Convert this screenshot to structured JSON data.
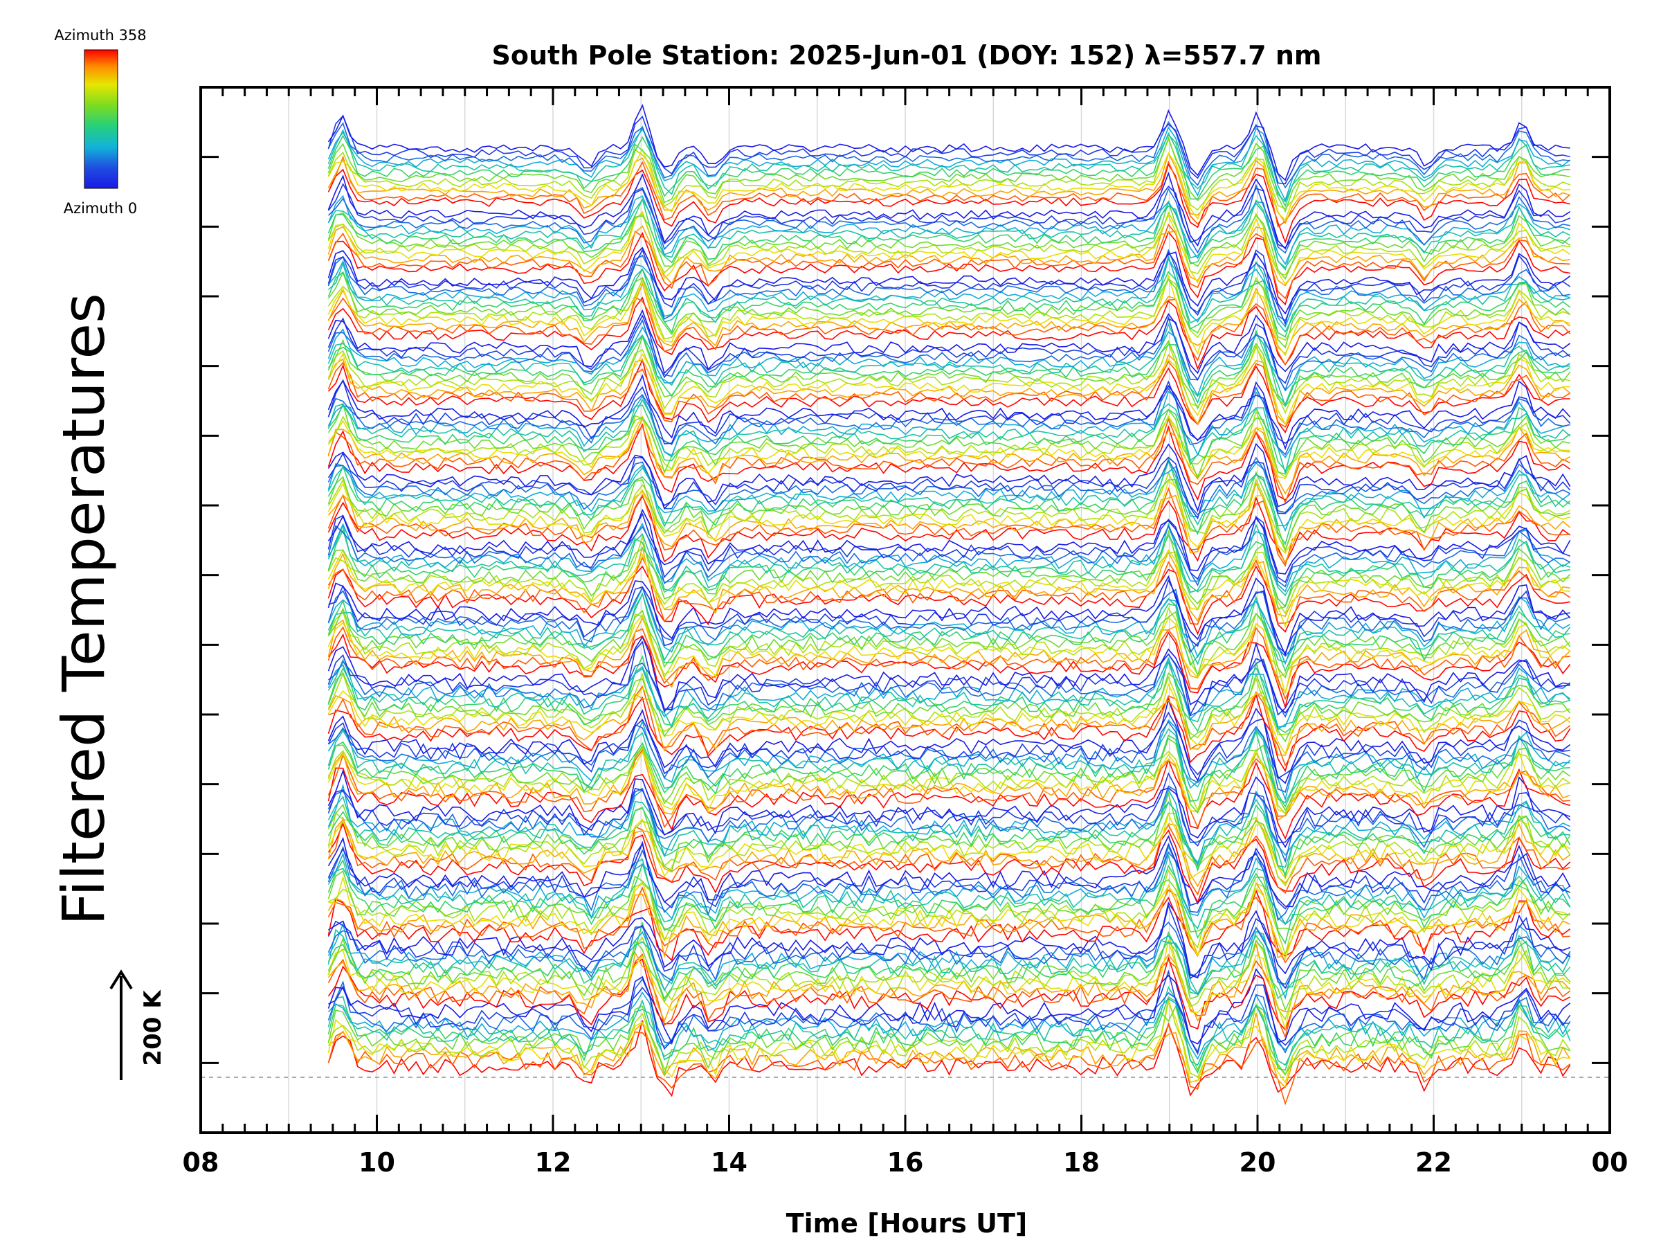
{
  "chart_data": {
    "type": "line",
    "title": "South Pole Station: 2025-Jun-01 (DOY: 152) λ=557.7 nm",
    "xlabel": "Time [Hours UT]",
    "ylabel": "Filtered Temperatures",
    "x_tick_labels": [
      "08",
      "10",
      "12",
      "14",
      "16",
      "18",
      "20",
      "22",
      "00"
    ],
    "xlim": [
      8,
      24
    ],
    "x_data_range": [
      9.45,
      23.55
    ],
    "grid": "vertical lines at each hour",
    "scale_bar": {
      "label": "200 K",
      "value": 200
    },
    "colorbar": {
      "top_label": "Azimuth 358",
      "bottom_label": "Azimuth 0",
      "colors": [
        "#ff0000",
        "#ff8c00",
        "#e6e600",
        "#7ddc1f",
        "#26d07c",
        "#12b4d8",
        "#1f4fe0",
        "#1a1ae6"
      ],
      "azimuth_range": [
        0,
        358
      ]
    },
    "series_description": "Stacked filtered-temperature traces, 14 groups of about 12 azimuth look directions each, offset vertically; colour encodes azimuth from 0 (blue) to 358 (red)",
    "groups": 14,
    "traces_per_group": 12,
    "colors": {
      "frame": "#000000",
      "grid": "#d9d9d9",
      "baseline": "#aaaaaa"
    }
  }
}
